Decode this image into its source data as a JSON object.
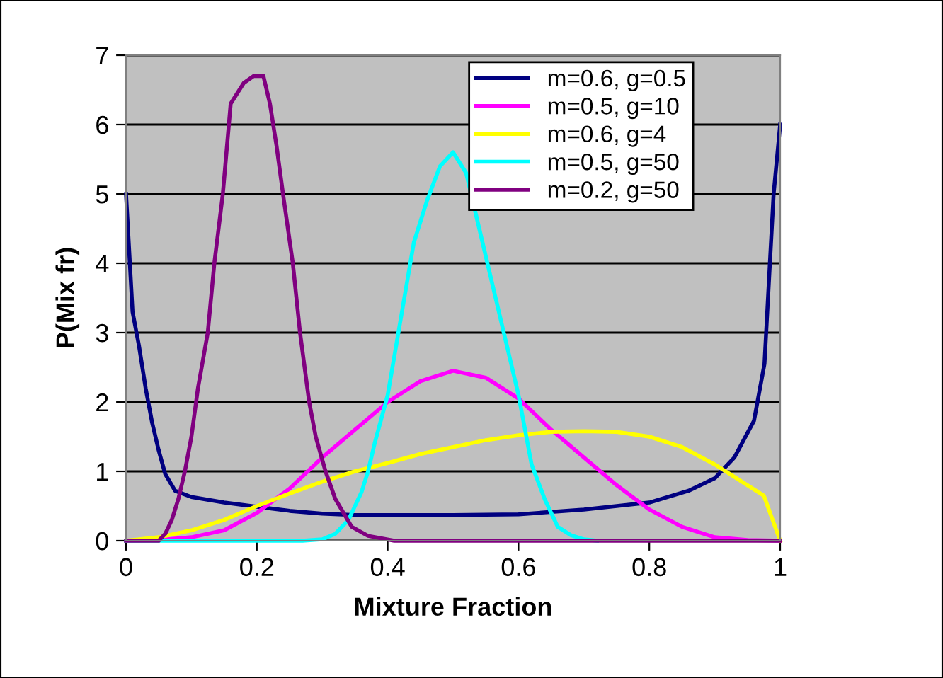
{
  "chart_data": {
    "type": "line",
    "xlabel": "Mixture Fraction",
    "ylabel": "P(Mix fr)",
    "xlim": [
      0,
      1
    ],
    "ylim": [
      0,
      7
    ],
    "xticks": [
      0,
      {
        "value": 0.2,
        "label": "0.2"
      },
      {
        "value": 0.4,
        "label": "0.4"
      },
      {
        "value": 0.6,
        "label": "0.6"
      },
      {
        "value": 0.8,
        "label": "0.8"
      },
      1
    ],
    "yticks": [
      0,
      1,
      2,
      3,
      4,
      5,
      6,
      7
    ],
    "grid": "y",
    "legend": "top right",
    "marker": "none",
    "line_style": "solid",
    "series": [
      {
        "name": "m=0.6, g=0.5",
        "color": "#000080",
        "x": [
          0,
          0.01,
          0.02,
          0.03,
          0.04,
          0.05,
          0.06,
          0.075,
          0.1,
          0.15,
          0.2,
          0.25,
          0.3,
          0.35,
          0.4,
          0.5,
          0.6,
          0.7,
          0.8,
          0.86,
          0.9,
          0.93,
          0.96,
          0.976,
          0.99,
          1
        ],
        "values": [
          5.0,
          3.3,
          2.8,
          2.2,
          1.7,
          1.3,
          0.96,
          0.72,
          0.63,
          0.55,
          0.49,
          0.43,
          0.39,
          0.37,
          0.37,
          0.37,
          0.38,
          0.45,
          0.55,
          0.72,
          0.9,
          1.2,
          1.73,
          2.55,
          5.0,
          6.0
        ]
      },
      {
        "name": "m=0.5, g=10",
        "color": "#ff00ff",
        "x": [
          0,
          0.05,
          0.1,
          0.15,
          0.2,
          0.25,
          0.3,
          0.35,
          0.4,
          0.45,
          0.5,
          0.55,
          0.6,
          0.65,
          0.7,
          0.75,
          0.8,
          0.85,
          0.9,
          0.95,
          1
        ],
        "values": [
          0,
          0.01,
          0.05,
          0.15,
          0.4,
          0.75,
          1.2,
          1.6,
          2.0,
          2.3,
          2.45,
          2.35,
          2.05,
          1.6,
          1.2,
          0.8,
          0.45,
          0.2,
          0.05,
          0.01,
          0
        ]
      },
      {
        "name": "m=0.6, g=4",
        "color": "#ffff00",
        "x": [
          0,
          0.05,
          0.1,
          0.15,
          0.2,
          0.25,
          0.3,
          0.35,
          0.4,
          0.45,
          0.5,
          0.55,
          0.6,
          0.65,
          0.7,
          0.75,
          0.8,
          0.85,
          0.9,
          0.95,
          0.975,
          1
        ],
        "values": [
          0,
          0.05,
          0.15,
          0.3,
          0.5,
          0.68,
          0.85,
          1.0,
          1.12,
          1.25,
          1.35,
          1.45,
          1.52,
          1.57,
          1.58,
          1.57,
          1.5,
          1.35,
          1.1,
          0.8,
          0.65,
          0
        ]
      },
      {
        "name": "m=0.5, g=50",
        "color": "#00ffff",
        "x": [
          0,
          0.27,
          0.3,
          0.32,
          0.34,
          0.36,
          0.37,
          0.38,
          0.4,
          0.42,
          0.44,
          0.46,
          0.48,
          0.5,
          0.52,
          0.54,
          0.56,
          0.58,
          0.6,
          0.62,
          0.64,
          0.66,
          0.68,
          0.7,
          0.72
        ],
        "values": [
          0,
          0,
          0.02,
          0.1,
          0.3,
          0.7,
          1.0,
          1.4,
          2.1,
          3.2,
          4.3,
          4.9,
          5.4,
          5.6,
          5.3,
          4.5,
          3.7,
          2.9,
          2.1,
          1.1,
          0.6,
          0.2,
          0.08,
          0.02,
          0
        ]
      },
      {
        "name": "m=0.2, g=50",
        "color": "#800080",
        "x": [
          0,
          0.05,
          0.06,
          0.07,
          0.08,
          0.09,
          0.1,
          0.11,
          0.125,
          0.135,
          0.148,
          0.16,
          0.18,
          0.195,
          0.21,
          0.22,
          0.23,
          0.24,
          0.255,
          0.266,
          0.28,
          0.29,
          0.305,
          0.32,
          0.345,
          0.37,
          0.41,
          1
        ],
        "values": [
          0,
          0,
          0.1,
          0.3,
          0.6,
          1.0,
          1.5,
          2.2,
          3.0,
          4.0,
          5.0,
          6.3,
          6.6,
          6.7,
          6.7,
          6.3,
          5.7,
          5.0,
          4.0,
          3.0,
          2.0,
          1.5,
          1.0,
          0.6,
          0.2,
          0.07,
          0,
          0
        ]
      }
    ]
  }
}
